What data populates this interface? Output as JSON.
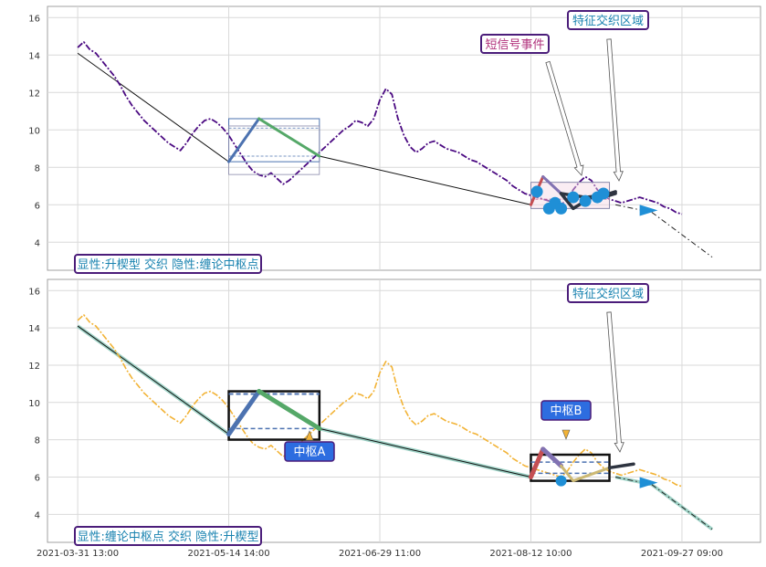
{
  "chart_data": [
    {
      "type": "line",
      "title": "",
      "xlabel": "",
      "ylabel": "",
      "ylim": [
        2.5,
        16.6
      ],
      "yticks": [
        4,
        6,
        8,
        10,
        12,
        14,
        16
      ],
      "grid": true,
      "corner_label": "显性:升楔型 交织 隐性:缠论中枢点",
      "annotations": [
        "短信号事件",
        "特征交织区域"
      ],
      "price_color": "#4b0a82",
      "series": [
        {
          "values": [
            14.4,
            14.7,
            14.3,
            14.1,
            13.7,
            13.3,
            12.9,
            12.4,
            11.8,
            11.3,
            10.9,
            10.5,
            10.2,
            9.9,
            9.6,
            9.3,
            9.1,
            8.9,
            9.3,
            9.8,
            10.2,
            10.5,
            10.6,
            10.4,
            10.1,
            9.7,
            9.2,
            8.7,
            8.2,
            7.8,
            7.6,
            7.5,
            7.7,
            7.4,
            7.1,
            7.3,
            7.6,
            7.9,
            8.2,
            8.5,
            8.8,
            9.1,
            9.4,
            9.7,
            10.0,
            10.2,
            10.5,
            10.4,
            10.2,
            10.6,
            11.6,
            12.2,
            11.9,
            10.6,
            9.7,
            9.1,
            8.8,
            9.0,
            9.3,
            9.4,
            9.2,
            9.0,
            8.9,
            8.8,
            8.6,
            8.4,
            8.3,
            8.1,
            7.9,
            7.7,
            7.5,
            7.3,
            7.0,
            6.8,
            6.6,
            6.5,
            6.4,
            6.3,
            6.2,
            6.1,
            6.0,
            6.3,
            6.8,
            7.2,
            7.5,
            7.3,
            6.8,
            6.5,
            6.3,
            6.2,
            6.1,
            6.2,
            6.3,
            6.4,
            6.3,
            6.2,
            6.1,
            5.9,
            5.8,
            5.6,
            5.5
          ]
        }
      ],
      "trend_line": [
        [
          0,
          14.1
        ],
        [
          25,
          8.3
        ],
        [
          30,
          10.6
        ],
        [
          40,
          8.6
        ],
        [
          75,
          6.0
        ],
        [
          105,
          3.2
        ]
      ],
      "central_box": {
        "x": [
          25,
          40
        ],
        "y": [
          8.3,
          10.6
        ],
        "mid": [
          8.6,
          10.1
        ]
      },
      "signal_box": {
        "x": [
          75,
          88
        ],
        "y": [
          5.8,
          7.2
        ]
      },
      "wave_lines": [
        {
          "color": "#4c72b0",
          "points": [
            [
              25,
              8.3
            ],
            [
              30,
              10.6
            ]
          ]
        },
        {
          "color": "#55a868",
          "points": [
            [
              30,
              10.6
            ],
            [
              40,
              8.6
            ]
          ]
        },
        {
          "color": "#c44e52",
          "points": [
            [
              75,
              6.0
            ],
            [
              77,
              7.5
            ]
          ]
        },
        {
          "color": "#8172b2",
          "points": [
            [
              77,
              7.5
            ],
            [
              80,
              6.6
            ]
          ]
        },
        {
          "color": "#2e3440",
          "points": [
            [
              80,
              6.6
            ],
            [
              82,
              5.8
            ],
            [
              85,
              6.4
            ],
            [
              88,
              6.5
            ],
            [
              89,
              6.6
            ]
          ]
        },
        {
          "color": "#2e3440",
          "points": [
            [
              80,
              6.6
            ],
            [
              84,
              6.4
            ],
            [
              87,
              6.5
            ],
            [
              89,
              6.7
            ]
          ]
        }
      ],
      "signal_points": [
        [
          76,
          6.7
        ],
        [
          78,
          5.8
        ],
        [
          79,
          6.1
        ],
        [
          80,
          5.8
        ],
        [
          82,
          6.4
        ],
        [
          84,
          6.2
        ],
        [
          86,
          6.4
        ],
        [
          87,
          6.6
        ]
      ],
      "forecast": [
        [
          89,
          6.0
        ],
        [
          95,
          5.6
        ],
        [
          105,
          3.2
        ]
      ]
    },
    {
      "type": "line",
      "title": "",
      "xlabel": "",
      "ylabel": "",
      "ylim": [
        2.5,
        16.6
      ],
      "yticks": [
        4,
        6,
        8,
        10,
        12,
        14,
        16
      ],
      "grid": true,
      "corner_label": "显性:缠论中枢点 交织 隐性:升楔型",
      "annotations": [
        "特征交织区域",
        "中枢A",
        "中枢B"
      ],
      "price_color": "#f2b336",
      "series": [
        {
          "values": [
            14.4,
            14.7,
            14.3,
            14.1,
            13.7,
            13.3,
            12.9,
            12.4,
            11.8,
            11.3,
            10.9,
            10.5,
            10.2,
            9.9,
            9.6,
            9.3,
            9.1,
            8.9,
            9.3,
            9.8,
            10.2,
            10.5,
            10.6,
            10.4,
            10.1,
            9.7,
            9.2,
            8.7,
            8.2,
            7.8,
            7.6,
            7.5,
            7.7,
            7.4,
            7.1,
            7.3,
            7.6,
            7.9,
            8.2,
            8.5,
            8.8,
            9.1,
            9.4,
            9.7,
            10.0,
            10.2,
            10.5,
            10.4,
            10.2,
            10.6,
            11.6,
            12.2,
            11.9,
            10.6,
            9.7,
            9.1,
            8.8,
            9.0,
            9.3,
            9.4,
            9.2,
            9.0,
            8.9,
            8.8,
            8.6,
            8.4,
            8.3,
            8.1,
            7.9,
            7.7,
            7.5,
            7.3,
            7.0,
            6.8,
            6.6,
            6.5,
            6.4,
            6.3,
            6.2,
            6.1,
            6.0,
            6.3,
            6.8,
            7.2,
            7.5,
            7.3,
            6.8,
            6.5,
            6.3,
            6.2,
            6.1,
            6.2,
            6.3,
            6.4,
            6.3,
            6.2,
            6.1,
            5.9,
            5.8,
            5.6,
            5.5
          ]
        }
      ],
      "trend_line": [
        [
          0,
          14.1
        ],
        [
          25,
          8.3
        ],
        [
          30,
          10.6
        ],
        [
          40,
          8.6
        ],
        [
          75,
          6.0
        ],
        [
          105,
          3.2
        ]
      ],
      "central_box": {
        "x": [
          25,
          40
        ],
        "y": [
          8.3,
          10.6
        ],
        "mid": [
          8.6,
          10.1
        ]
      },
      "signal_box": {
        "x": [
          75,
          88
        ],
        "y": [
          5.8,
          7.2
        ]
      },
      "wave_lines": [
        {
          "color": "#4c72b0",
          "points": [
            [
              25,
              8.3
            ],
            [
              30,
              10.6
            ]
          ]
        },
        {
          "color": "#55a868",
          "points": [
            [
              30,
              10.6
            ],
            [
              40,
              8.6
            ]
          ]
        },
        {
          "color": "#c44e52",
          "points": [
            [
              75,
              6.0
            ],
            [
              77,
              7.5
            ]
          ]
        },
        {
          "color": "#8172b2",
          "points": [
            [
              77,
              7.5
            ],
            [
              80,
              6.6
            ]
          ]
        },
        {
          "color": "#ccb974",
          "points": [
            [
              80,
              6.6
            ],
            [
              82,
              5.8
            ],
            [
              88,
              6.5
            ]
          ]
        },
        {
          "color": "#2e3440",
          "points": [
            [
              88,
              6.5
            ],
            [
              92,
              6.7
            ]
          ]
        }
      ],
      "signal_points": [
        [
          80,
          5.8
        ]
      ],
      "forecast": [
        [
          89,
          6.0
        ],
        [
          95,
          5.6
        ],
        [
          105,
          3.2
        ]
      ]
    }
  ],
  "x_axis": {
    "range": [
      -5,
      113
    ],
    "tick_positions": [
      0,
      25,
      50,
      75,
      100
    ],
    "tick_labels": [
      "2021-03-31 13:00",
      "2021-05-14 14:00",
      "2021-06-29 11:00",
      "2021-08-12 10:00",
      "2021-09-27 09:00"
    ]
  },
  "colors": {
    "grid": "#d9d9d9",
    "axis": "#a0a0a0",
    "label_text": "#1f4a8c",
    "label_border": "#4b1d7a",
    "blue_box_fill": "#2d6de0",
    "label_text_pink": "#b0307b",
    "label_text_teal": "#1a83b0"
  }
}
